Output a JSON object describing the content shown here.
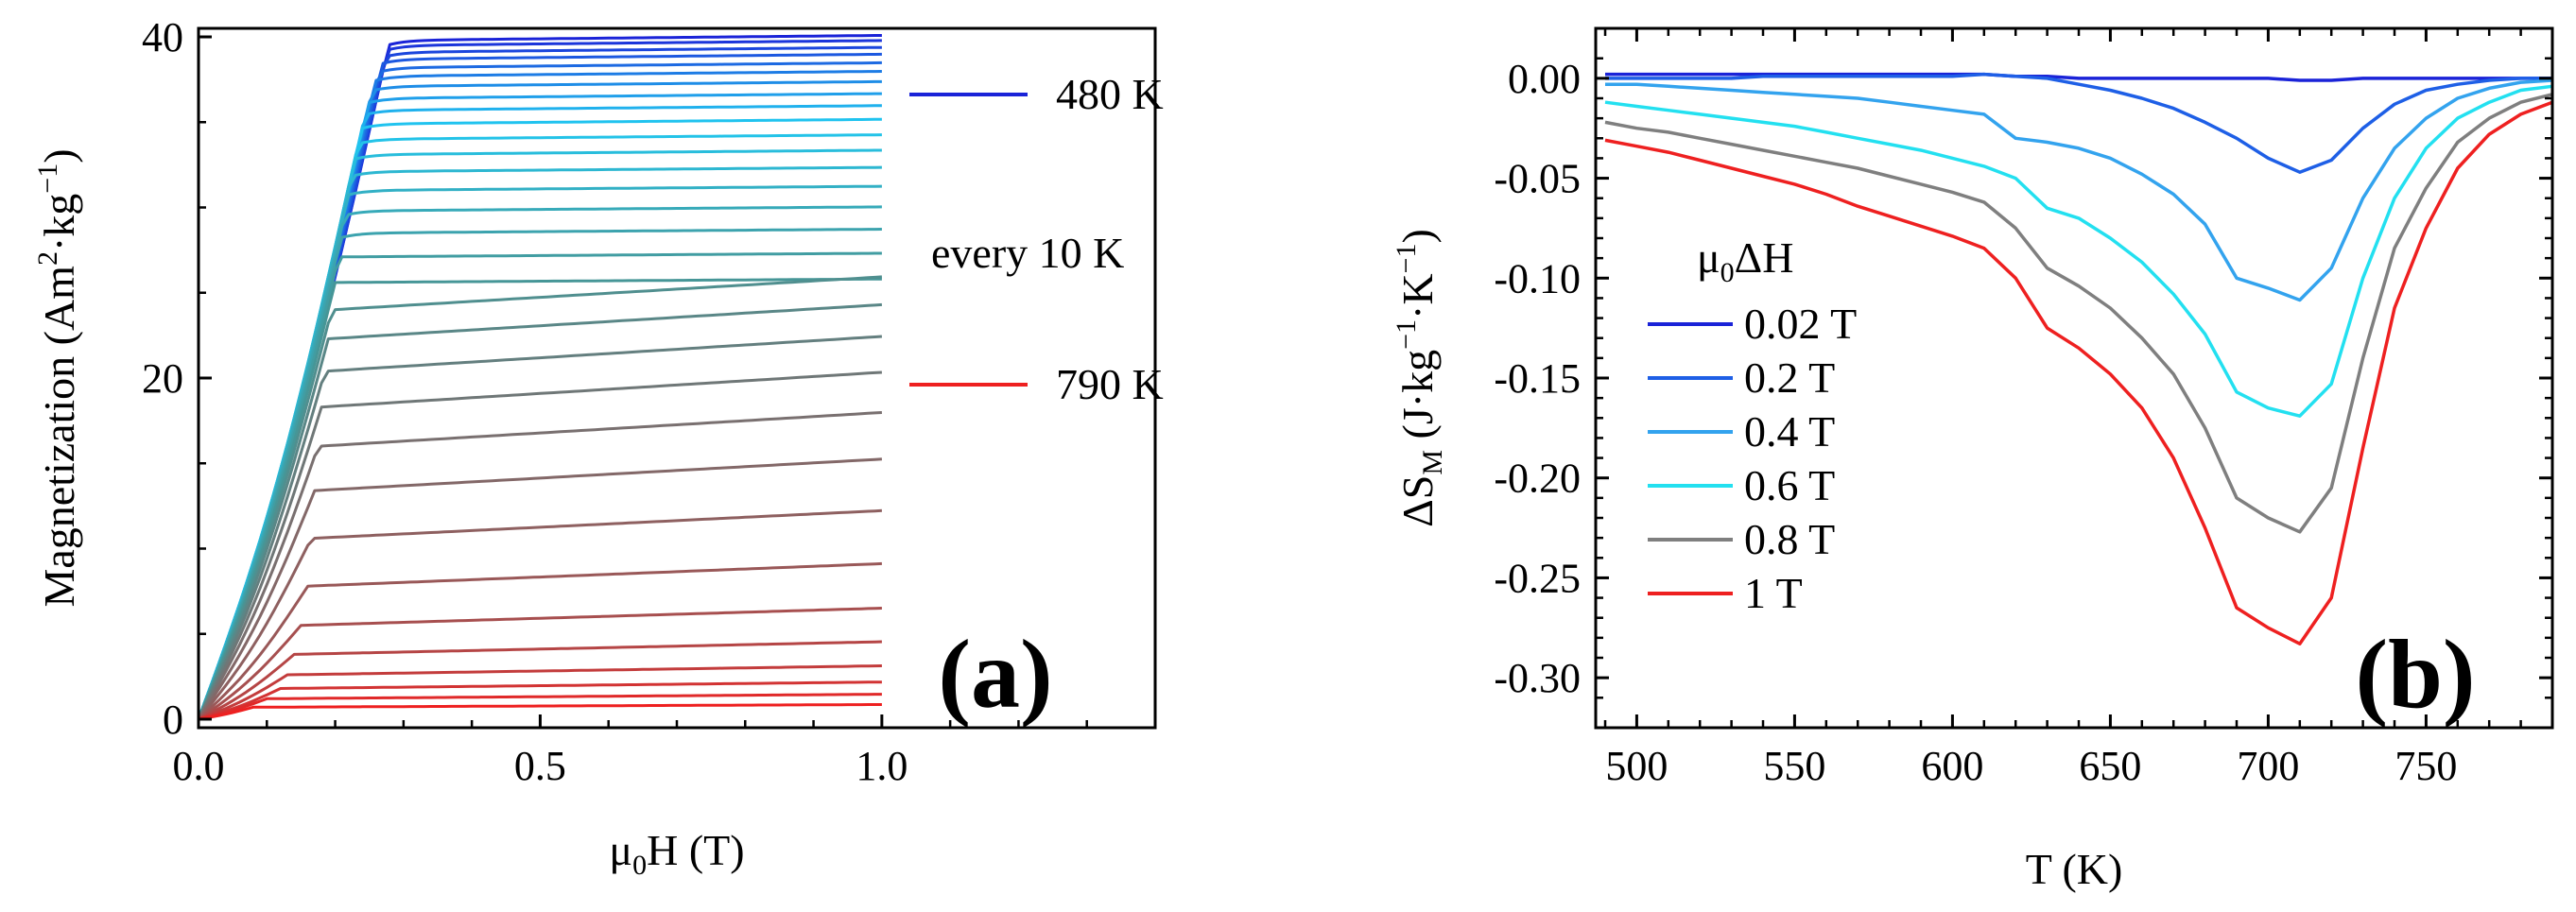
{
  "chart_data": [
    {
      "type": "line",
      "panel": "(a)",
      "xlabel": {
        "main": "μ",
        "sub": "0",
        "rest": "H (T)"
      },
      "ylabel": {
        "main": "Magnetization (Am",
        "sup1": "2",
        "mid": "·kg",
        "sup2": "−1",
        "end": ")"
      },
      "xlim": [
        0,
        1.4
      ],
      "ylim": [
        -0.5,
        40.5
      ],
      "xticks": [
        "0.0",
        "0.5",
        "1.0"
      ],
      "xtick_values": [
        0,
        0.5,
        1.0
      ],
      "yticks": [
        "0",
        "20",
        "40"
      ],
      "ytick_values": [
        0,
        20,
        40
      ],
      "legend": {
        "top": {
          "label": "480 K",
          "color": "#1a23d8"
        },
        "middle": "every 10 K",
        "bottom": {
          "label": "790 K",
          "color": "#ee2020"
        }
      },
      "series_summary": "32 M(H) isotherms from 480 K to 790 K in 10 K steps; curves saturate near 0.25–0.3 T at low temperature",
      "saturation_values": [
        39.8,
        39.5,
        39.1,
        38.7,
        38.2,
        37.7,
        37.1,
        36.4,
        35.7,
        34.9,
        34.0,
        33.1,
        32.1,
        31.0,
        29.8,
        28.5,
        27.1,
        25.6,
        24.0,
        22.3,
        20.4,
        18.3,
        16.0,
        13.4,
        10.6,
        7.8,
        5.5,
        3.8,
        2.6,
        1.8,
        1.2,
        0.7
      ],
      "knee_fields": [
        0.28,
        0.278,
        0.275,
        0.27,
        0.265,
        0.26,
        0.255,
        0.25,
        0.245,
        0.24,
        0.235,
        0.23,
        0.225,
        0.22,
        0.215,
        0.21,
        0.205,
        0.2,
        0.195,
        0.19,
        0.185,
        0.18,
        0.175,
        0.17,
        0.165,
        0.16,
        0.15,
        0.14,
        0.13,
        0.12,
        0.1,
        0.08
      ]
    },
    {
      "type": "line",
      "panel": "(b)",
      "xlabel": "T (K)",
      "ylabel": {
        "main": "ΔS",
        "sub": "M",
        "mid": " (J·kg",
        "sup1": "−1",
        "mid2": "·K",
        "sup2": "−1",
        "end": ")"
      },
      "xlim": [
        487,
        790
      ],
      "ylim": [
        -0.325,
        0.025
      ],
      "xticks": [
        "500",
        "550",
        "600",
        "650",
        "700",
        "750"
      ],
      "xtick_values": [
        500,
        550,
        600,
        650,
        700,
        750
      ],
      "yticks": [
        "0.00",
        "-0.05",
        "-0.10",
        "-0.15",
        "-0.20",
        "-0.25",
        "-0.30"
      ],
      "ytick_values": [
        0,
        -0.05,
        -0.1,
        -0.15,
        -0.2,
        -0.25,
        -0.3
      ],
      "legend_title": {
        "main": "μ",
        "sub": "0",
        "rest": "ΔH"
      },
      "x": [
        490,
        500,
        510,
        520,
        530,
        540,
        550,
        560,
        570,
        580,
        590,
        600,
        610,
        620,
        630,
        640,
        650,
        660,
        670,
        680,
        690,
        700,
        710,
        720,
        730,
        740,
        750,
        760,
        770,
        780,
        790
      ],
      "series": [
        {
          "name": "0.02 T",
          "color": "#1a23d8",
          "values": [
            0.002,
            0.002,
            0.002,
            0.002,
            0.002,
            0.002,
            0.002,
            0.002,
            0.002,
            0.002,
            0.002,
            0.002,
            0.002,
            0.001,
            0.001,
            0.0,
            0.0,
            0.0,
            0.0,
            0.0,
            0.0,
            0.0,
            -0.001,
            -0.001,
            0.0,
            0.0,
            0.0,
            0.0,
            0.0,
            0.0,
            0.0
          ]
        },
        {
          "name": "0.2 T",
          "color": "#1e5fe6",
          "values": [
            0.0,
            0.0,
            0.0,
            0.0,
            0.0,
            0.001,
            0.001,
            0.001,
            0.001,
            0.001,
            0.001,
            0.001,
            0.002,
            0.001,
            0.0,
            -0.003,
            -0.006,
            -0.01,
            -0.015,
            -0.022,
            -0.03,
            -0.04,
            -0.047,
            -0.041,
            -0.025,
            -0.013,
            -0.006,
            -0.003,
            -0.001,
            0.0,
            0.0
          ]
        },
        {
          "name": "0.4 T",
          "color": "#33a3ee",
          "values": [
            -0.003,
            -0.003,
            -0.004,
            -0.005,
            -0.006,
            -0.007,
            -0.008,
            -0.009,
            -0.01,
            -0.012,
            -0.014,
            -0.016,
            -0.018,
            -0.03,
            -0.032,
            -0.035,
            -0.04,
            -0.048,
            -0.058,
            -0.073,
            -0.1,
            -0.105,
            -0.111,
            -0.095,
            -0.06,
            -0.035,
            -0.02,
            -0.01,
            -0.005,
            -0.002,
            -0.001
          ]
        },
        {
          "name": "0.6 T",
          "color": "#23e0f0",
          "values": [
            -0.012,
            -0.014,
            -0.016,
            -0.018,
            -0.02,
            -0.022,
            -0.024,
            -0.027,
            -0.03,
            -0.033,
            -0.036,
            -0.04,
            -0.044,
            -0.05,
            -0.065,
            -0.07,
            -0.08,
            -0.092,
            -0.108,
            -0.128,
            -0.157,
            -0.165,
            -0.169,
            -0.153,
            -0.1,
            -0.06,
            -0.035,
            -0.02,
            -0.012,
            -0.006,
            -0.004
          ]
        },
        {
          "name": "0.8 T",
          "color": "#7f7f7f",
          "values": [
            -0.022,
            -0.025,
            -0.027,
            -0.03,
            -0.033,
            -0.036,
            -0.039,
            -0.042,
            -0.045,
            -0.049,
            -0.053,
            -0.057,
            -0.062,
            -0.075,
            -0.095,
            -0.104,
            -0.115,
            -0.13,
            -0.148,
            -0.175,
            -0.21,
            -0.22,
            -0.227,
            -0.205,
            -0.14,
            -0.085,
            -0.055,
            -0.032,
            -0.02,
            -0.012,
            -0.008
          ]
        },
        {
          "name": "1 T",
          "color": "#ee2020",
          "values": [
            -0.031,
            -0.034,
            -0.037,
            -0.041,
            -0.045,
            -0.049,
            -0.053,
            -0.058,
            -0.064,
            -0.069,
            -0.074,
            -0.079,
            -0.085,
            -0.1,
            -0.125,
            -0.135,
            -0.148,
            -0.165,
            -0.19,
            -0.225,
            -0.265,
            -0.275,
            -0.283,
            -0.26,
            -0.185,
            -0.115,
            -0.075,
            -0.045,
            -0.028,
            -0.018,
            -0.012
          ]
        }
      ]
    }
  ]
}
